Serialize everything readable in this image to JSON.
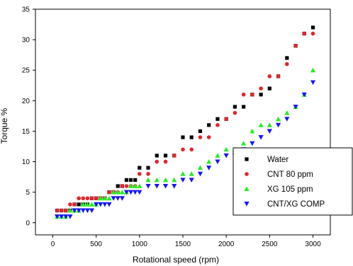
{
  "chart_data": {
    "type": "scatter",
    "xlabel": "Rotational speed (rpm)",
    "ylabel": "Torque %",
    "xlim": [
      -200,
      3200
    ],
    "ylim": [
      -2,
      35
    ],
    "xticks": [
      0,
      500,
      1000,
      1500,
      2000,
      2500,
      3000
    ],
    "yticks": [
      0,
      5,
      10,
      15,
      20,
      25,
      30,
      35
    ],
    "grid": false,
    "legend_position": "bottom-right",
    "series": [
      {
        "name": "Water",
        "marker": "square",
        "color": "#000000",
        "x": [
          50,
          100,
          150,
          200,
          250,
          300,
          350,
          400,
          450,
          500,
          550,
          600,
          650,
          700,
          750,
          800,
          850,
          900,
          950,
          1000,
          1100,
          1200,
          1300,
          1400,
          1500,
          1600,
          1700,
          1800,
          1900,
          2000,
          2100,
          2200,
          2300,
          2400,
          2500,
          2600,
          2700,
          2800,
          2900,
          3000
        ],
        "y": [
          2,
          2,
          2,
          2,
          3,
          3,
          3,
          3,
          4,
          4,
          4,
          4,
          5,
          5,
          6,
          6,
          7,
          7,
          7,
          9,
          9,
          11,
          11,
          11,
          14,
          14,
          15,
          16,
          17,
          17,
          19,
          19,
          21,
          21,
          22,
          24,
          27,
          29,
          31,
          32
        ]
      },
      {
        "name": "CNT 80 ppm",
        "marker": "circle",
        "color": "#e3242b",
        "x": [
          50,
          100,
          150,
          200,
          250,
          300,
          350,
          400,
          450,
          500,
          550,
          600,
          650,
          700,
          750,
          800,
          850,
          900,
          950,
          1000,
          1100,
          1200,
          1300,
          1400,
          1500,
          1600,
          1700,
          1800,
          1900,
          2000,
          2100,
          2200,
          2300,
          2400,
          2500,
          2600,
          2700,
          2800,
          2900,
          3000
        ],
        "y": [
          2,
          2,
          2,
          3,
          3,
          4,
          4,
          4,
          4,
          4,
          4,
          4,
          5,
          5,
          5,
          6,
          6,
          6,
          6,
          8,
          8,
          10,
          10,
          11,
          12,
          12,
          14,
          14,
          16,
          17,
          18,
          21,
          21,
          22,
          24,
          24,
          26,
          29,
          31,
          31
        ]
      },
      {
        "name": "XG 105 ppm",
        "marker": "triangle-up",
        "color": "#22ee22",
        "x": [
          50,
          100,
          150,
          200,
          250,
          300,
          350,
          400,
          450,
          500,
          550,
          600,
          650,
          700,
          750,
          800,
          850,
          900,
          950,
          1000,
          1100,
          1200,
          1300,
          1400,
          1500,
          1600,
          1700,
          1800,
          1900,
          2000,
          2100,
          2200,
          2300,
          2400,
          2500,
          2600,
          2700,
          2800,
          2900,
          3000
        ],
        "y": [
          1,
          1,
          1,
          2,
          2,
          2,
          3,
          3,
          3,
          3,
          4,
          4,
          4,
          5,
          5,
          5,
          5,
          6,
          6,
          6,
          7,
          7,
          7,
          7,
          8,
          8,
          9,
          10,
          11,
          12,
          12,
          13,
          15,
          16,
          16,
          17,
          18,
          19,
          21,
          25
        ]
      },
      {
        "name": "CNT/XG COMP",
        "marker": "triangle-down",
        "color": "#1515ff",
        "x": [
          50,
          100,
          150,
          200,
          250,
          300,
          350,
          400,
          450,
          500,
          550,
          600,
          650,
          700,
          750,
          800,
          850,
          900,
          950,
          1000,
          1100,
          1200,
          1300,
          1400,
          1500,
          1600,
          1700,
          1800,
          1900,
          2000,
          2100,
          2200,
          2300,
          2400,
          2500,
          2600,
          2700,
          2800,
          2900,
          3000
        ],
        "y": [
          1,
          1,
          1,
          1,
          2,
          2,
          2,
          2,
          2,
          3,
          3,
          3,
          3,
          4,
          4,
          4,
          5,
          5,
          5,
          5,
          6,
          6,
          6,
          6,
          7,
          7,
          8,
          9,
          10,
          11,
          11,
          12,
          13,
          14,
          15,
          16,
          17,
          19,
          21,
          23
        ]
      }
    ]
  }
}
